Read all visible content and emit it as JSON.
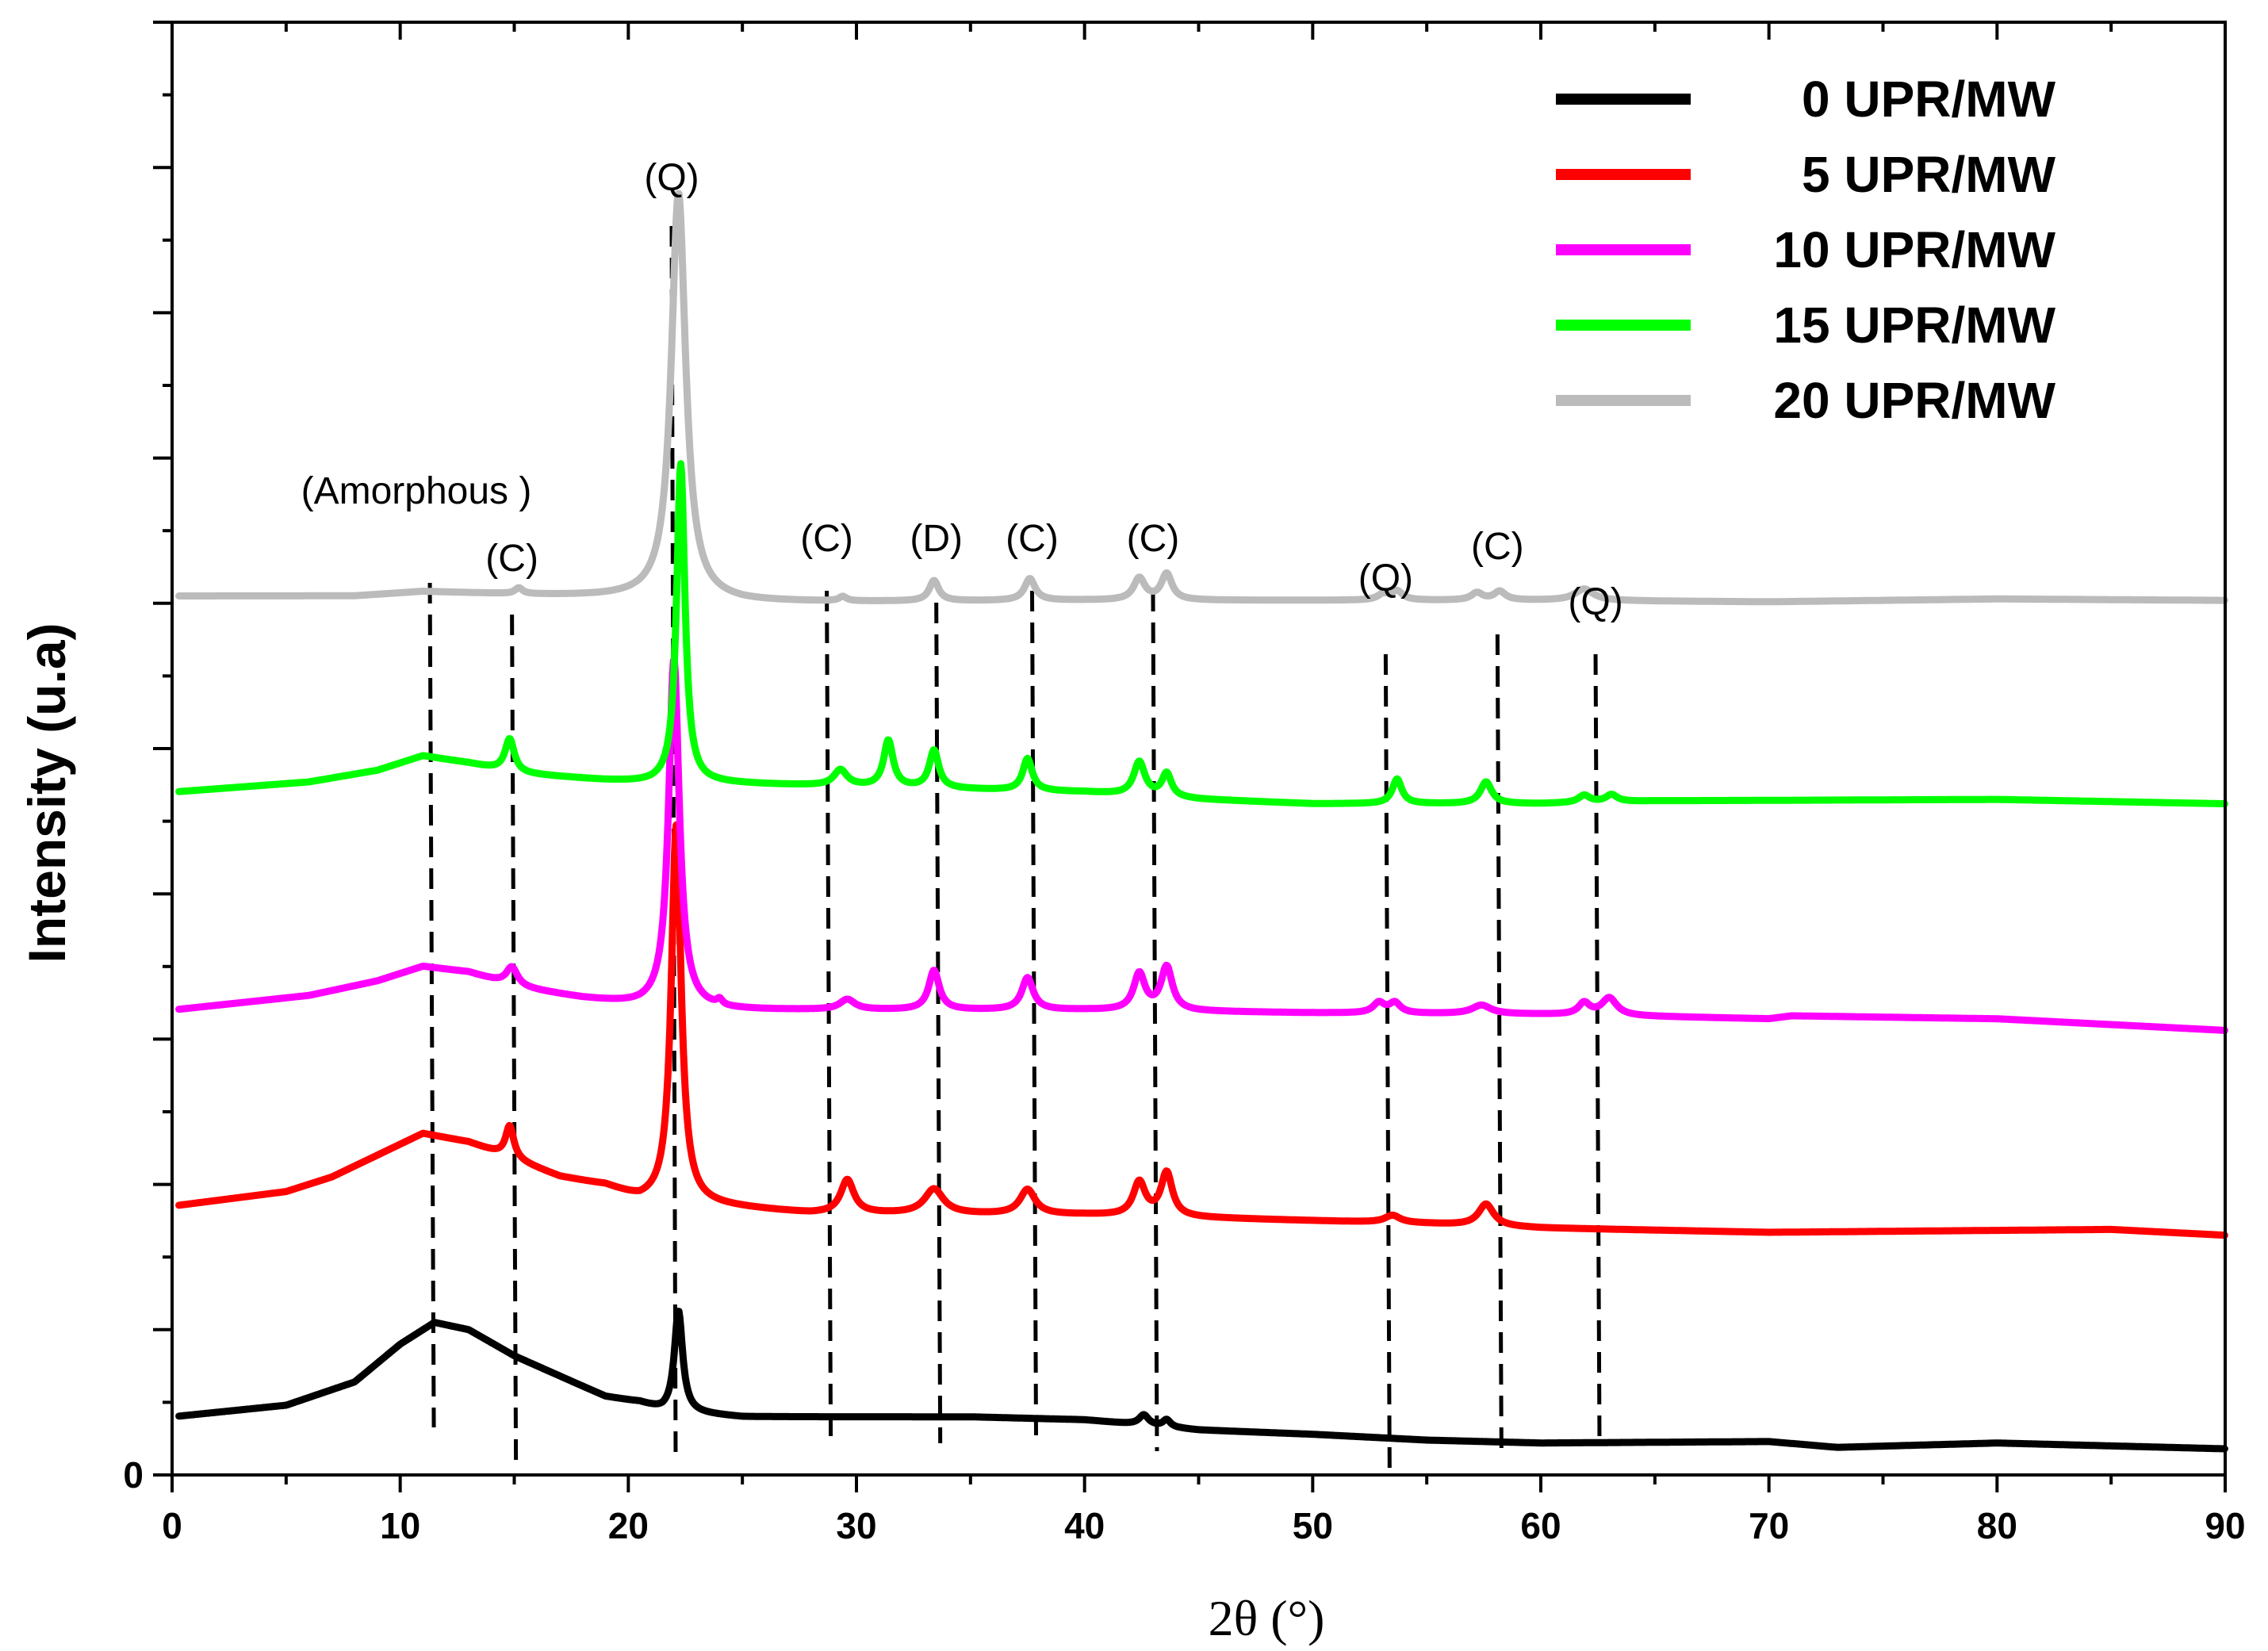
{
  "chart_data": {
    "type": "line",
    "title": "",
    "xlabel": "2θ (°)",
    "ylabel": "Intensity (u.a)",
    "xlim": [
      0,
      90
    ],
    "ylim": [
      0,
      100
    ],
    "x_ticks": [
      0,
      10,
      20,
      30,
      40,
      50,
      60,
      70,
      80,
      90
    ],
    "x_tick_labels": [
      "0",
      "10",
      "20",
      "30",
      "40",
      "50",
      "60",
      "70",
      "80",
      "90"
    ],
    "y_tick_labels": [
      {
        "value": 0,
        "label": "0"
      }
    ],
    "grid": false,
    "legend_position": "top-right",
    "series": [
      {
        "name": "0 UPR/MW",
        "color": "#000000",
        "offset": 4,
        "baseline": [
          [
            0,
            0
          ],
          [
            5,
            0.8
          ],
          [
            8,
            2.4
          ],
          [
            10,
            5
          ],
          [
            11.5,
            6.5
          ],
          [
            13,
            6
          ],
          [
            15,
            4.2
          ],
          [
            17,
            2.8
          ],
          [
            19,
            1.4
          ],
          [
            20.5,
            1
          ],
          [
            21.5,
            0.4
          ],
          [
            25,
            0
          ],
          [
            35,
            0
          ],
          [
            40,
            -0.2
          ],
          [
            45,
            -0.9
          ],
          [
            50,
            -1.2
          ],
          [
            55,
            -1.6
          ],
          [
            60,
            -1.8
          ],
          [
            70,
            -1.7
          ],
          [
            73,
            -2.1
          ],
          [
            80,
            -1.8
          ],
          [
            90,
            -2.2
          ]
        ],
        "peaks": [
          [
            22.2,
            7,
            0.22
          ],
          [
            42.6,
            0.7,
            0.25
          ],
          [
            43.6,
            0.5,
            0.2
          ]
        ]
      },
      {
        "name": "5 UPR/MW",
        "color": "#ff0000",
        "offset": 18.5,
        "baseline": [
          [
            0,
            0
          ],
          [
            5,
            1
          ],
          [
            7,
            2
          ],
          [
            9,
            3.5
          ],
          [
            11,
            5
          ],
          [
            13,
            4.4
          ],
          [
            15,
            3.2
          ],
          [
            17,
            2
          ],
          [
            19,
            1.4
          ],
          [
            20.5,
            0.4
          ],
          [
            21.5,
            0.3
          ],
          [
            24,
            0
          ],
          [
            28,
            -0.5
          ],
          [
            40,
            -0.6
          ],
          [
            50,
            -1
          ],
          [
            55,
            -1.2
          ],
          [
            60,
            -1.5
          ],
          [
            70,
            -1.8
          ],
          [
            85,
            -1.6
          ],
          [
            90,
            -2
          ]
        ],
        "peaks": [
          [
            14.8,
            2.2,
            0.22
          ],
          [
            22.1,
            26,
            0.26
          ],
          [
            29.6,
            2.3,
            0.35
          ],
          [
            33.4,
            1.7,
            0.5
          ],
          [
            37.5,
            1.7,
            0.4
          ],
          [
            42.4,
            2.3,
            0.32
          ],
          [
            43.6,
            3,
            0.3
          ],
          [
            53.5,
            0.5,
            0.4
          ],
          [
            57.6,
            1.5,
            0.4
          ]
        ]
      },
      {
        "name": "10 UPR/MW",
        "color": "#ff00ff",
        "offset": 32,
        "baseline": [
          [
            0,
            0
          ],
          [
            6,
            1
          ],
          [
            9,
            2
          ],
          [
            11,
            3
          ],
          [
            13,
            2.6
          ],
          [
            15,
            1.6
          ],
          [
            18,
            0.8
          ],
          [
            20.5,
            0.3
          ],
          [
            24,
            0
          ],
          [
            40,
            0
          ],
          [
            50,
            -0.2
          ],
          [
            60,
            -0.3
          ],
          [
            70,
            -0.6
          ],
          [
            71,
            -0.4
          ],
          [
            80,
            -0.6
          ],
          [
            90,
            -1.4
          ]
        ],
        "peaks": [
          [
            14.9,
            1.3,
            0.3
          ],
          [
            22.0,
            24,
            0.28
          ],
          [
            24,
            0.4,
            0.15
          ],
          [
            29.6,
            0.7,
            0.4
          ],
          [
            33.4,
            2.7,
            0.28
          ],
          [
            37.5,
            2.2,
            0.3
          ],
          [
            42.4,
            2.5,
            0.3
          ],
          [
            43.6,
            3,
            0.3
          ],
          [
            52.9,
            0.7,
            0.3
          ],
          [
            53.6,
            0.7,
            0.3
          ],
          [
            57.4,
            0.6,
            0.5
          ],
          [
            61.9,
            0.8,
            0.3
          ],
          [
            63,
            1.2,
            0.4
          ]
        ]
      },
      {
        "name": "15 UPR/MW",
        "color": "#00ff00",
        "offset": 47,
        "baseline": [
          [
            0,
            0
          ],
          [
            6,
            0.7
          ],
          [
            9,
            1.5
          ],
          [
            11,
            2.5
          ],
          [
            13,
            2
          ],
          [
            15,
            1.3
          ],
          [
            19,
            0.8
          ],
          [
            21,
            0.6
          ],
          [
            24,
            0.6
          ],
          [
            40,
            0
          ],
          [
            45,
            -0.5
          ],
          [
            50,
            -0.8
          ],
          [
            60,
            -0.8
          ],
          [
            65,
            -0.6
          ],
          [
            80,
            -0.5
          ],
          [
            90,
            -0.8
          ]
        ],
        "peaks": [
          [
            14.8,
            2.3,
            0.25
          ],
          [
            22.3,
            22,
            0.22
          ],
          [
            29.3,
            1.1,
            0.35
          ],
          [
            31.4,
            3.2,
            0.25
          ],
          [
            33.4,
            2.6,
            0.25
          ],
          [
            37.5,
            2.2,
            0.25
          ],
          [
            42.4,
            2.3,
            0.3
          ],
          [
            43.6,
            1.6,
            0.25
          ],
          [
            53.7,
            1.7,
            0.25
          ],
          [
            57.6,
            1.5,
            0.3
          ],
          [
            61.9,
            0.5,
            0.3
          ],
          [
            63.1,
            0.5,
            0.3
          ]
        ]
      },
      {
        "name": "20 UPR/MW",
        "color": "#bbbbbb",
        "offset": 60.5,
        "baseline": [
          [
            0,
            0
          ],
          [
            8,
            0
          ],
          [
            11,
            0.3
          ],
          [
            13,
            0.2
          ],
          [
            15,
            0.1
          ],
          [
            20,
            -0.1
          ],
          [
            25,
            -0.4
          ],
          [
            30,
            -0.4
          ],
          [
            40,
            -0.3
          ],
          [
            60,
            -0.3
          ],
          [
            70,
            -0.4
          ],
          [
            80,
            -0.2
          ],
          [
            90,
            -0.3
          ]
        ],
        "peaks": [
          [
            15.2,
            0.4,
            0.2
          ],
          [
            22.2,
            28,
            0.38
          ],
          [
            29.4,
            0.3,
            0.2
          ],
          [
            33.4,
            1.4,
            0.25
          ],
          [
            37.6,
            1.5,
            0.28
          ],
          [
            42.4,
            1.5,
            0.3
          ],
          [
            43.6,
            1.8,
            0.28
          ],
          [
            53.1,
            0.4,
            0.3
          ],
          [
            53.7,
            0.6,
            0.3
          ],
          [
            57.2,
            0.5,
            0.3
          ],
          [
            58.2,
            0.6,
            0.3
          ],
          [
            61.9,
            0.8,
            0.5
          ]
        ]
      }
    ],
    "reference_lines": [
      {
        "x": 11.3,
        "label": "(Amorphous )"
      },
      {
        "x": 14.9,
        "label": "(C)"
      },
      {
        "x": 21.9,
        "label": "(Q)"
      },
      {
        "x": 28.7,
        "label": "(C)"
      },
      {
        "x": 33.5,
        "label": "(D)"
      },
      {
        "x": 37.7,
        "label": "(C)"
      },
      {
        "x": 43.0,
        "label": "(C)"
      },
      {
        "x": 53.2,
        "label": "(Q)"
      },
      {
        "x": 58.1,
        "label": "(C)"
      },
      {
        "x": 62.4,
        "label": "(Q)"
      }
    ]
  }
}
